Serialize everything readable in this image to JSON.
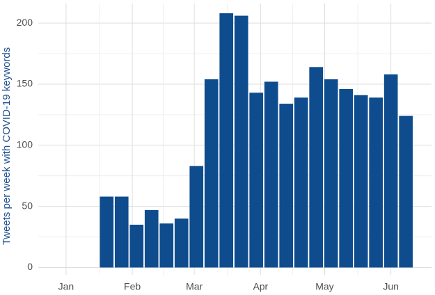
{
  "chart_data": {
    "type": "bar",
    "y_label": "Tweets per week with COVID-19 keywords",
    "x": [
      19,
      26,
      33,
      40,
      47,
      54,
      61,
      68,
      75,
      82,
      89,
      96,
      103,
      110,
      117,
      124,
      131,
      138,
      145,
      152,
      159
    ],
    "values": [
      58,
      58,
      35,
      47,
      36,
      40,
      83,
      154,
      208,
      206,
      143,
      152,
      134,
      139,
      164,
      154,
      146,
      141,
      139,
      158,
      124
    ],
    "color": "#0e4c8e",
    "xlim": [
      -13,
      171
    ],
    "xticks": [
      {
        "value": 0,
        "label": "Jan"
      },
      {
        "value": 31,
        "label": "Feb"
      },
      {
        "value": 60,
        "label": "Mar"
      },
      {
        "value": 91,
        "label": "Apr"
      },
      {
        "value": 121,
        "label": "May"
      },
      {
        "value": 152,
        "label": "Jun"
      }
    ],
    "ylim": [
      -6,
      216
    ],
    "yticks": [
      0,
      50,
      100,
      150,
      200
    ],
    "grid": true
  }
}
